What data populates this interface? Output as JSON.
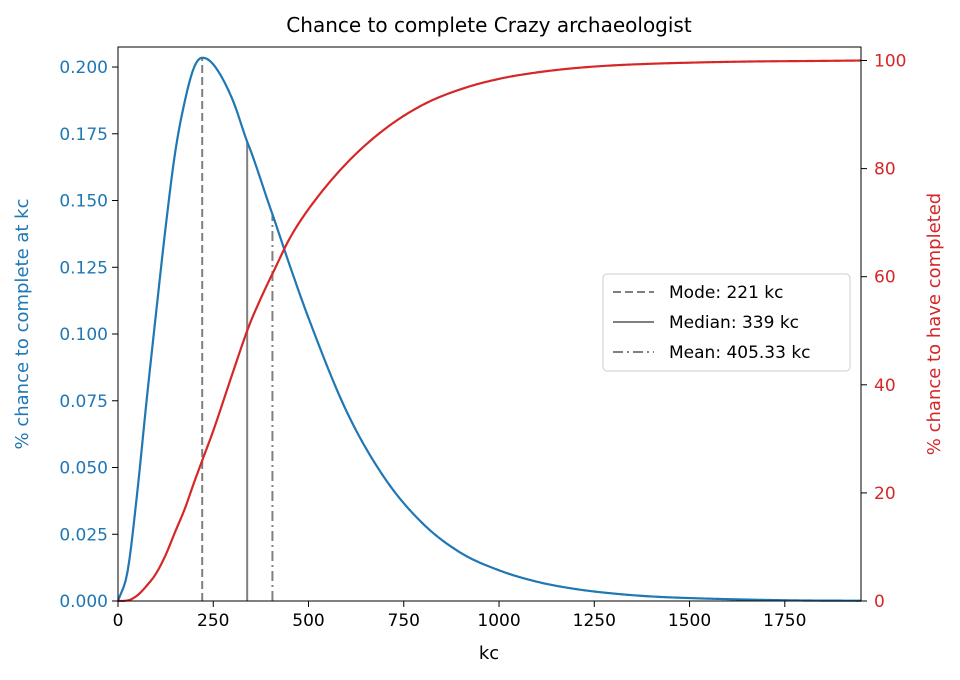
{
  "chart_data": {
    "type": "line",
    "title": "Chance to complete Crazy archaeologist",
    "xlabel": "kc",
    "ylabel_left": "% chance to complete at kc",
    "ylabel_right": "% chance to have completed",
    "xlim": [
      0,
      1950
    ],
    "ylim_left": [
      0,
      0.2075
    ],
    "ylim_right": [
      0,
      102.5
    ],
    "x_ticks": [
      0,
      250,
      500,
      750,
      1000,
      1250,
      1500,
      1750
    ],
    "x_tick_labels": [
      "0",
      "250",
      "500",
      "750",
      "1000",
      "1250",
      "1500",
      "1750"
    ],
    "y_left_ticks": [
      0,
      0.025,
      0.05,
      0.075,
      0.1,
      0.125,
      0.15,
      0.175,
      0.2
    ],
    "y_left_tick_labels": [
      "0.000",
      "0.025",
      "0.050",
      "0.075",
      "0.100",
      "0.125",
      "0.150",
      "0.175",
      "0.200"
    ],
    "y_right_ticks": [
      0,
      20,
      40,
      60,
      80,
      100
    ],
    "y_right_tick_labels": [
      "0",
      "20",
      "40",
      "60",
      "80",
      "100"
    ],
    "grid": false,
    "legend_position": "center-right",
    "colors": {
      "left_axis": "#1f77b4",
      "right_axis": "#d62728",
      "markers": "#808080"
    },
    "series": [
      {
        "axis": "left",
        "color": "#1f77b4",
        "x": [
          0,
          25,
          50,
          75,
          100,
          125,
          150,
          175,
          200,
          221,
          250,
          300,
          339,
          350,
          400,
          405,
          450,
          500,
          600,
          700,
          800,
          900,
          1000,
          1100,
          1200,
          1300,
          1400,
          1500,
          1600,
          1700,
          1800,
          1950
        ],
        "y": [
          0,
          0.011,
          0.04,
          0.075,
          0.108,
          0.14,
          0.168,
          0.187,
          0.2,
          0.2035,
          0.201,
          0.188,
          0.172,
          0.168,
          0.147,
          0.145,
          0.126,
          0.106,
          0.071,
          0.046,
          0.029,
          0.018,
          0.0115,
          0.0072,
          0.0045,
          0.0028,
          0.0017,
          0.0011,
          0.0007,
          0.0004,
          0.0002,
          0.0001
        ]
      },
      {
        "axis": "right",
        "color": "#d62728",
        "x": [
          0,
          25,
          50,
          75,
          100,
          125,
          150,
          175,
          200,
          221,
          250,
          300,
          339,
          350,
          400,
          405,
          450,
          500,
          600,
          700,
          800,
          900,
          1000,
          1100,
          1200,
          1300,
          1400,
          1500,
          1600,
          1700,
          1800,
          1950
        ],
        "y": [
          0,
          0.1,
          1.0,
          2.8,
          5.1,
          8.5,
          12.8,
          17.0,
          22.0,
          26.0,
          31.5,
          42.0,
          50.0,
          52.0,
          59.8,
          60.5,
          67.0,
          72.5,
          81.0,
          87.3,
          91.8,
          94.7,
          96.6,
          97.8,
          98.6,
          99.1,
          99.4,
          99.6,
          99.75,
          99.85,
          99.9,
          100.0
        ]
      }
    ],
    "markers": [
      {
        "label": "Mode: 221 kc",
        "x": 221,
        "style": "dashed"
      },
      {
        "label": "Median: 339 kc",
        "x": 339,
        "style": "solid"
      },
      {
        "label": "Mean: 405.33 kc",
        "x": 405.33,
        "style": "dashdot"
      }
    ]
  }
}
